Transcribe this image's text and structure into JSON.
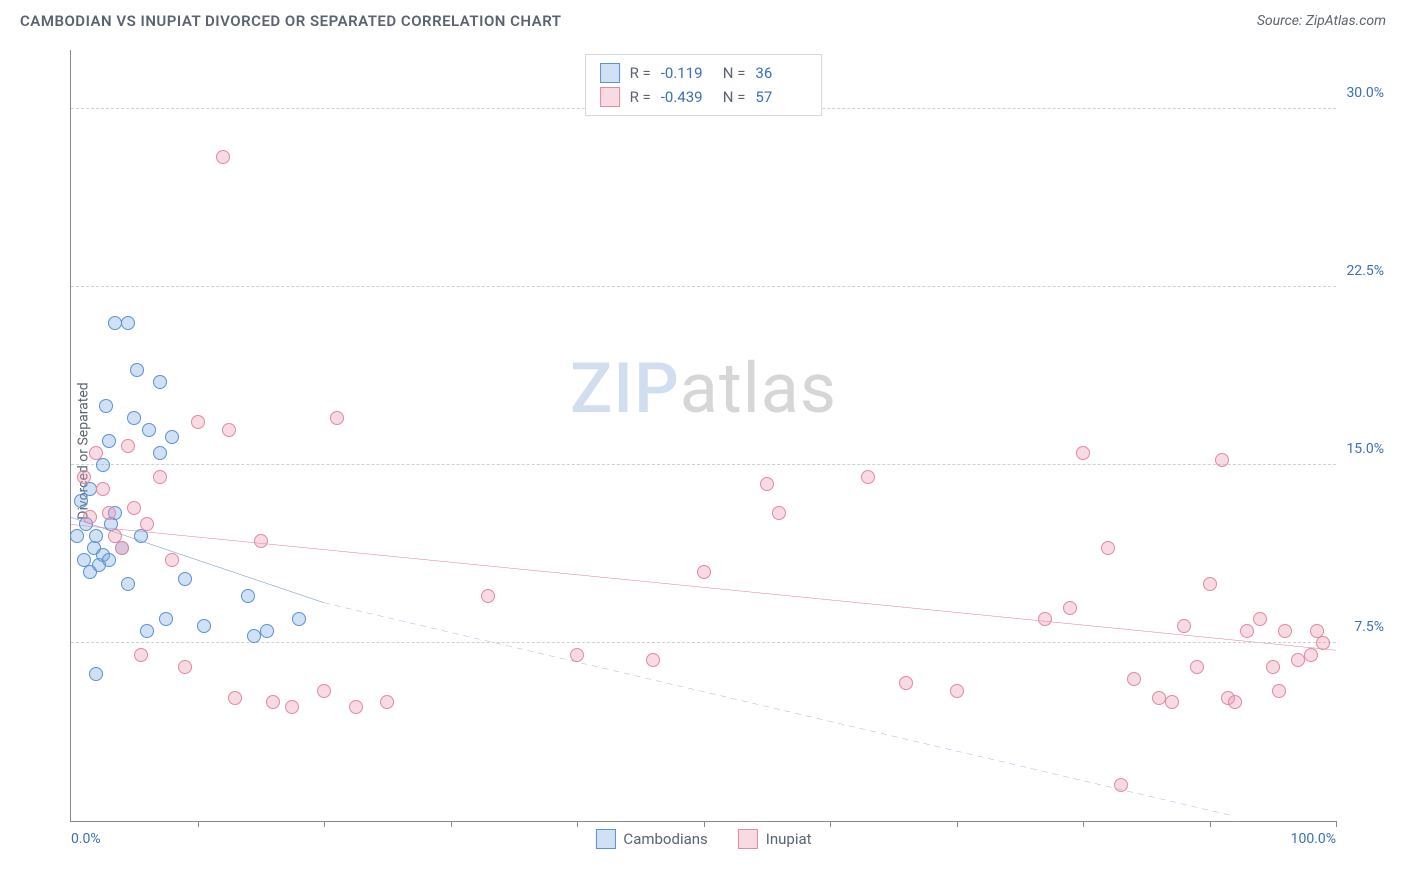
{
  "header": {
    "title": "CAMBODIAN VS INUPIAT DIVORCED OR SEPARATED CORRELATION CHART",
    "source_prefix": "Source: ",
    "source_name": "ZipAtlas.com"
  },
  "ylabel": "Divorced or Separated",
  "watermark": {
    "part1": "ZIP",
    "part2": "atlas"
  },
  "chart": {
    "type": "scatter",
    "background_color": "#ffffff",
    "grid_color": "#d0d0d0",
    "axis_color": "#888888",
    "text_color": "#5a6470",
    "value_color": "#3b6fb6",
    "xlim": [
      0,
      100
    ],
    "ylim": [
      0,
      32.5
    ],
    "xtick_positions": [
      0,
      10,
      20,
      30,
      40,
      50,
      60,
      70,
      80,
      90,
      100
    ],
    "xlabel_min": "0.0%",
    "xlabel_max": "100.0%",
    "yticks": [
      {
        "value": 7.5,
        "label": "7.5%"
      },
      {
        "value": 15.0,
        "label": "15.0%"
      },
      {
        "value": 22.5,
        "label": "22.5%"
      },
      {
        "value": 30.0,
        "label": "30.0%"
      }
    ],
    "marker_radius": 7,
    "marker_stroke_width": 1
  },
  "series": [
    {
      "name": "Cambodians",
      "fill_color": "rgba(120,170,225,0.35)",
      "stroke_color": "#5a93cf",
      "R_label": "R =",
      "R_value": "-0.119",
      "N_label": "N =",
      "N_value": "36",
      "trend": {
        "solid": {
          "x1": 0,
          "y1": 12.8,
          "x2": 20,
          "y2": 9.2
        },
        "dashed": {
          "x1": 20,
          "y1": 9.2,
          "x2": 92,
          "y2": 0.2
        },
        "color": "#3b6fb6",
        "width": 2.5,
        "dash": "6,5"
      },
      "points": [
        [
          0.5,
          12.0
        ],
        [
          0.8,
          13.5
        ],
        [
          1.0,
          11.0
        ],
        [
          1.2,
          12.5
        ],
        [
          1.5,
          10.5
        ],
        [
          1.5,
          14.0
        ],
        [
          1.8,
          11.5
        ],
        [
          2.0,
          12.0
        ],
        [
          2.0,
          6.2
        ],
        [
          2.2,
          10.8
        ],
        [
          2.5,
          11.2
        ],
        [
          2.5,
          15.0
        ],
        [
          2.8,
          17.5
        ],
        [
          3.0,
          16.0
        ],
        [
          3.0,
          11.0
        ],
        [
          3.2,
          12.5
        ],
        [
          3.5,
          21.0
        ],
        [
          3.5,
          13.0
        ],
        [
          4.0,
          11.5
        ],
        [
          4.5,
          21.0
        ],
        [
          4.5,
          10.0
        ],
        [
          5.0,
          17.0
        ],
        [
          5.2,
          19.0
        ],
        [
          5.5,
          12.0
        ],
        [
          6.0,
          8.0
        ],
        [
          6.2,
          16.5
        ],
        [
          7.0,
          18.5
        ],
        [
          7.0,
          15.5
        ],
        [
          7.5,
          8.5
        ],
        [
          8.0,
          16.2
        ],
        [
          9.0,
          10.2
        ],
        [
          10.5,
          8.2
        ],
        [
          14.0,
          9.5
        ],
        [
          14.5,
          7.8
        ],
        [
          15.5,
          8.0
        ],
        [
          18.0,
          8.5
        ]
      ]
    },
    {
      "name": "Inupiat",
      "fill_color": "rgba(235,150,175,0.35)",
      "stroke_color": "#e08aa5",
      "R_label": "R =",
      "R_value": "-0.439",
      "N_label": "N =",
      "N_value": "57",
      "trend": {
        "solid": {
          "x1": 0,
          "y1": 12.5,
          "x2": 100,
          "y2": 7.2
        },
        "color": "#e55a8a",
        "width": 2.5
      },
      "points": [
        [
          1.0,
          14.5
        ],
        [
          1.5,
          12.8
        ],
        [
          2.0,
          15.5
        ],
        [
          2.5,
          14.0
        ],
        [
          3.0,
          13.0
        ],
        [
          3.5,
          12.0
        ],
        [
          4.0,
          11.5
        ],
        [
          4.5,
          15.8
        ],
        [
          5.0,
          13.2
        ],
        [
          5.5,
          7.0
        ],
        [
          6.0,
          12.5
        ],
        [
          7.0,
          14.5
        ],
        [
          8.0,
          11.0
        ],
        [
          9.0,
          6.5
        ],
        [
          10.0,
          16.8
        ],
        [
          12.0,
          28.0
        ],
        [
          12.5,
          16.5
        ],
        [
          13.0,
          5.2
        ],
        [
          15.0,
          11.8
        ],
        [
          16.0,
          5.0
        ],
        [
          17.5,
          4.8
        ],
        [
          20.0,
          5.5
        ],
        [
          21.0,
          17.0
        ],
        [
          22.5,
          4.8
        ],
        [
          25.0,
          5.0
        ],
        [
          33.0,
          9.5
        ],
        [
          40.0,
          7.0
        ],
        [
          46.0,
          6.8
        ],
        [
          50.0,
          10.5
        ],
        [
          55.0,
          14.2
        ],
        [
          56.0,
          13.0
        ],
        [
          63.0,
          14.5
        ],
        [
          66.0,
          5.8
        ],
        [
          70.0,
          5.5
        ],
        [
          77.0,
          8.5
        ],
        [
          79.0,
          9.0
        ],
        [
          80.0,
          15.5
        ],
        [
          82.0,
          11.5
        ],
        [
          83.0,
          1.5
        ],
        [
          84.0,
          6.0
        ],
        [
          86.0,
          5.2
        ],
        [
          87.0,
          5.0
        ],
        [
          88.0,
          8.2
        ],
        [
          89.0,
          6.5
        ],
        [
          90.0,
          10.0
        ],
        [
          91.0,
          15.2
        ],
        [
          91.5,
          5.2
        ],
        [
          92.0,
          5.0
        ],
        [
          93.0,
          8.0
        ],
        [
          94.0,
          8.5
        ],
        [
          95.0,
          6.5
        ],
        [
          95.5,
          5.5
        ],
        [
          96.0,
          8.0
        ],
        [
          97.0,
          6.8
        ],
        [
          98.0,
          7.0
        ],
        [
          98.5,
          8.0
        ],
        [
          99.0,
          7.5
        ]
      ]
    }
  ]
}
